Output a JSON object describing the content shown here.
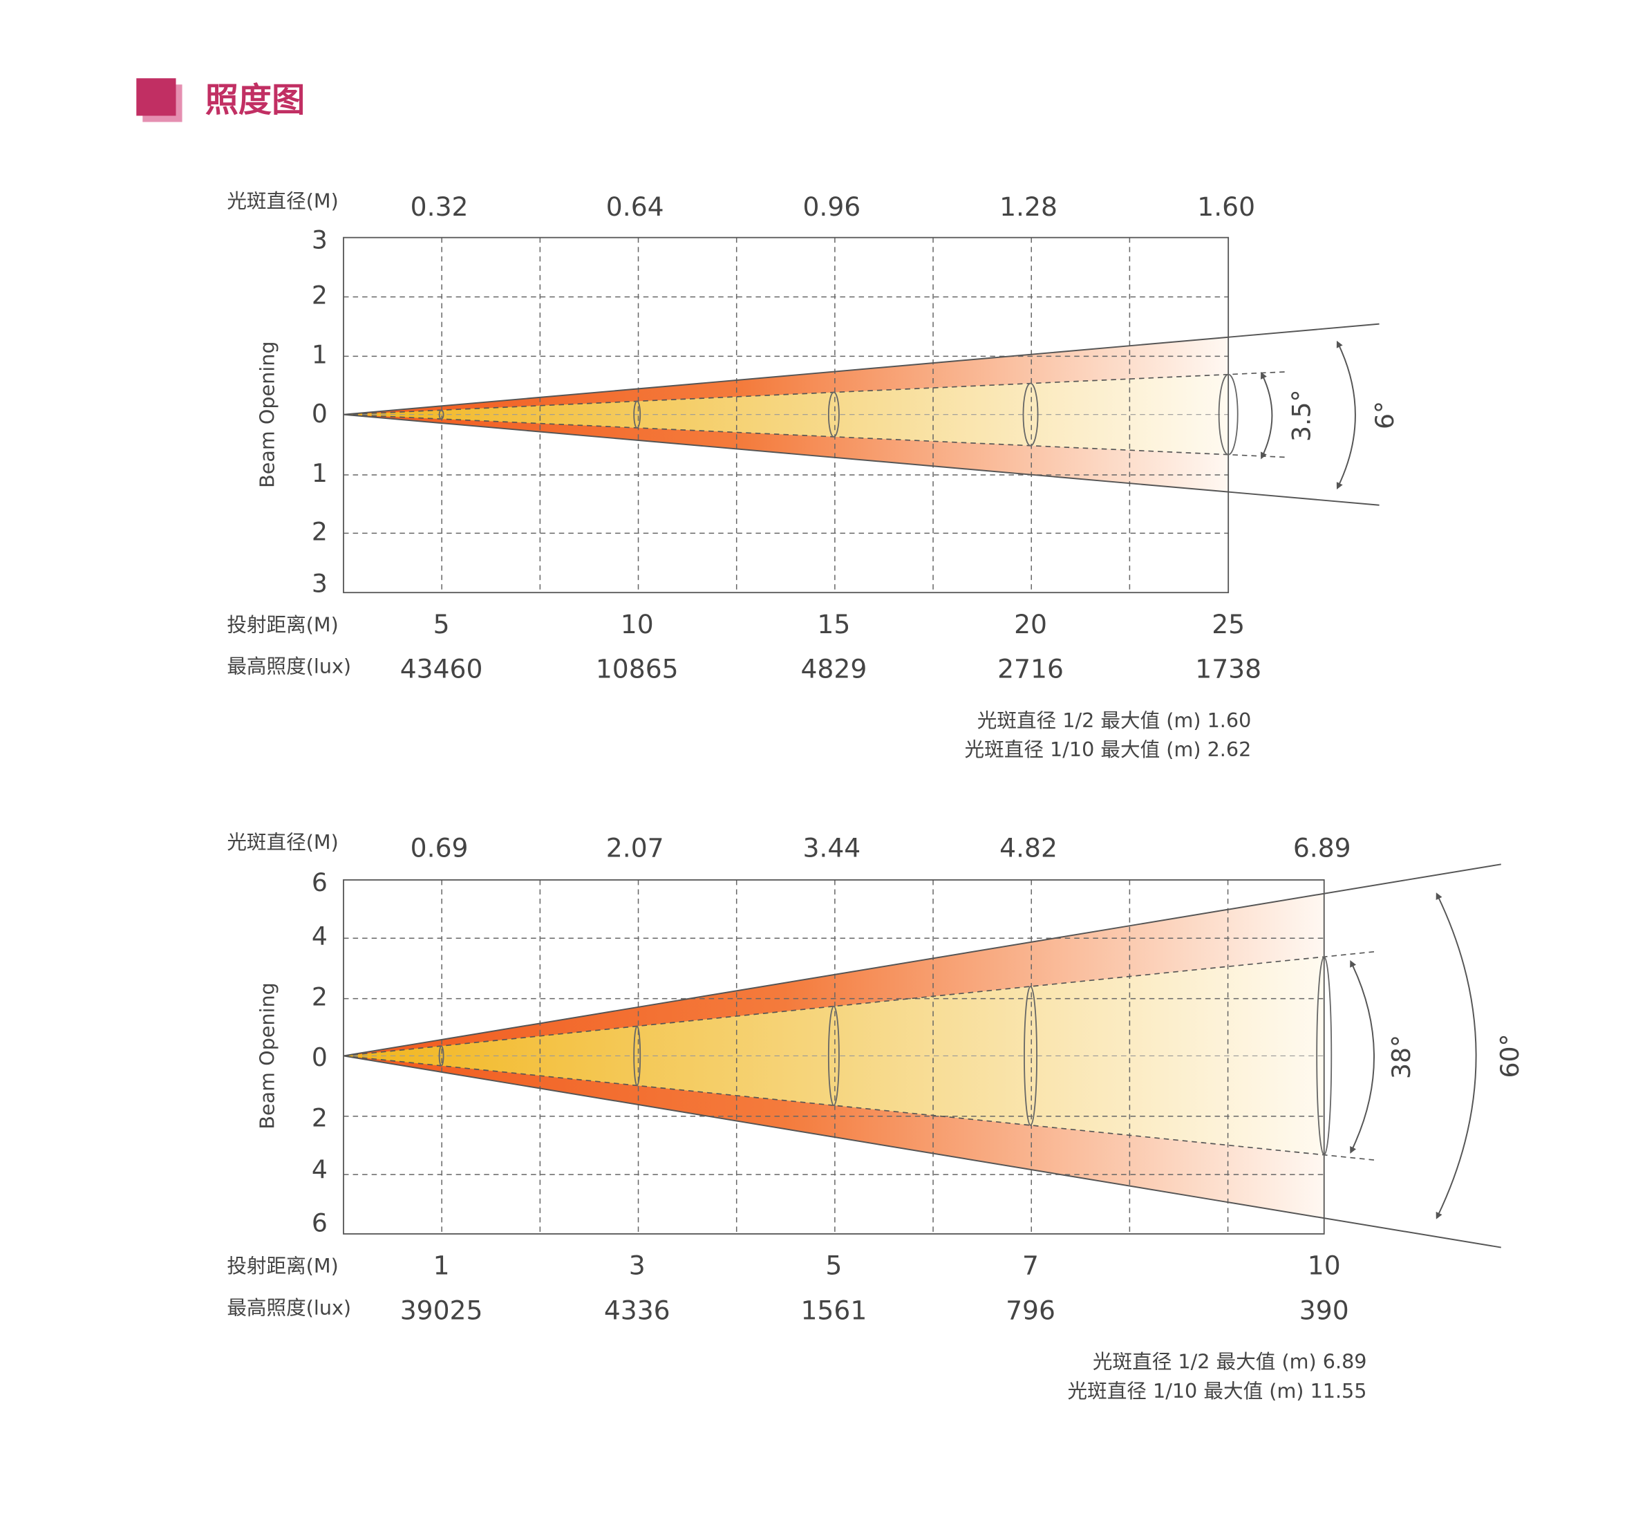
{
  "header": {
    "title": "照度图"
  },
  "diagrams": [
    {
      "diameter_label": "光斑直径(M)",
      "diameters": [
        "0.32",
        "0.64",
        "0.96",
        "1.28",
        "1.60"
      ],
      "y_axis_label": "Beam Opening",
      "yticks": [
        "3",
        "2",
        "1",
        "0",
        "1",
        "2",
        "3"
      ],
      "distance_label": "投射距离(M)",
      "distances": [
        "5",
        "10",
        "15",
        "20",
        "25"
      ],
      "lux_label": "最高照度(lux)",
      "lux": [
        "43460",
        "10865",
        "4829",
        "2716",
        "1738"
      ],
      "inner_angle": "3.5°",
      "outer_angle": "6°",
      "notes": [
        "光斑直径 1/2 最大值 (m) 1.60",
        "光斑直径 1/10 最大值 (m) 2.62"
      ]
    },
    {
      "diameter_label": "光斑直径(M)",
      "diameters": [
        "0.69",
        "2.07",
        "3.44",
        "4.82",
        "6.89"
      ],
      "y_axis_label": "Beam Opening",
      "yticks": [
        "6",
        "4",
        "2",
        "0",
        "2",
        "4",
        "6"
      ],
      "distance_label": "投射距离(M)",
      "distances": [
        "1",
        "3",
        "5",
        "7",
        "10"
      ],
      "lux_label": "最高照度(lux)",
      "lux": [
        "39025",
        "4336",
        "1561",
        "796",
        "390"
      ],
      "inner_angle": "38°",
      "outer_angle": "60°",
      "notes": [
        "光斑直径 1/2 最大值 (m) 6.89",
        "光斑直径 1/10 最大值 (m) 11.55"
      ]
    }
  ]
}
